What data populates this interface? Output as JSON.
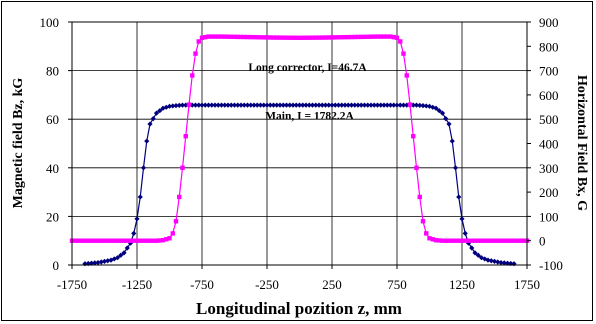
{
  "chart_data": {
    "type": "scatter",
    "xlabel": "Longitudinal pozition z, mm",
    "ylabel_left": "Magnetic field Bz, kG",
    "ylabel_right": "Horizontal Field Bx, G",
    "xlim": [
      -1750,
      1750
    ],
    "ylim_left": [
      0,
      100
    ],
    "ylim_right": [
      -100,
      900
    ],
    "x_ticks": [
      -1750,
      -1250,
      -750,
      -250,
      250,
      750,
      1250,
      1750
    ],
    "y_left_ticks": [
      0,
      20,
      40,
      60,
      80,
      100
    ],
    "y_right_ticks": [
      -100,
      0,
      100,
      200,
      300,
      400,
      500,
      600,
      700,
      800,
      900
    ],
    "grid": true,
    "series": [
      {
        "name": "Main, I = 1782.2A",
        "axis": "left",
        "color": "#00007f",
        "marker": "diamond",
        "x": [
          -1650,
          -1550,
          -1500,
          -1450,
          -1400,
          -1350,
          -1300,
          -1275,
          -1250,
          -1225,
          -1200,
          -1175,
          -1150,
          -1100,
          -1050,
          -1000,
          -950,
          -900,
          -800,
          -600,
          -400,
          -200,
          0,
          200,
          400,
          600,
          800,
          900,
          950,
          1000,
          1050,
          1100,
          1150,
          1175,
          1200,
          1225,
          1250,
          1275,
          1300,
          1350,
          1400,
          1450,
          1500,
          1550,
          1650
        ],
        "y": [
          0.5,
          1,
          1.5,
          2,
          3,
          5,
          9,
          13,
          19,
          28,
          40,
          51,
          58,
          62.5,
          64.5,
          65.3,
          65.6,
          65.8,
          65.8,
          65.8,
          65.8,
          65.8,
          65.8,
          65.8,
          65.8,
          65.8,
          65.8,
          65.8,
          65.6,
          65.3,
          64.5,
          62.5,
          58,
          51,
          40,
          28,
          19,
          13,
          9,
          5,
          3,
          2,
          1.5,
          1,
          0.5
        ]
      },
      {
        "name": "Long corrector, I=46.7A",
        "axis": "right",
        "color": "#ff00ff",
        "marker": "square",
        "x": [
          -1750,
          -1500,
          -1250,
          -1100,
          -1050,
          -1000,
          -975,
          -950,
          -925,
          -900,
          -875,
          -850,
          -825,
          -800,
          -775,
          -750,
          -700,
          -600,
          -400,
          -200,
          0,
          200,
          400,
          600,
          700,
          750,
          775,
          800,
          825,
          850,
          875,
          900,
          925,
          950,
          975,
          1000,
          1050,
          1100,
          1250,
          1500,
          1750
        ],
        "y": [
          0,
          0,
          0,
          0,
          2,
          10,
          30,
          80,
          180,
          300,
          430,
          560,
          680,
          770,
          820,
          835,
          840,
          840,
          838,
          836,
          835,
          836,
          838,
          840,
          840,
          835,
          820,
          770,
          680,
          560,
          430,
          300,
          180,
          80,
          30,
          10,
          2,
          0,
          0,
          0,
          0
        ]
      }
    ],
    "annotations": [
      {
        "text": "Long corrector, I=46.7A",
        "x": 0,
        "y_right": 715
      },
      {
        "text": "Main, I = 1782.2A",
        "x": 0,
        "y_left": 61.5
      }
    ]
  }
}
